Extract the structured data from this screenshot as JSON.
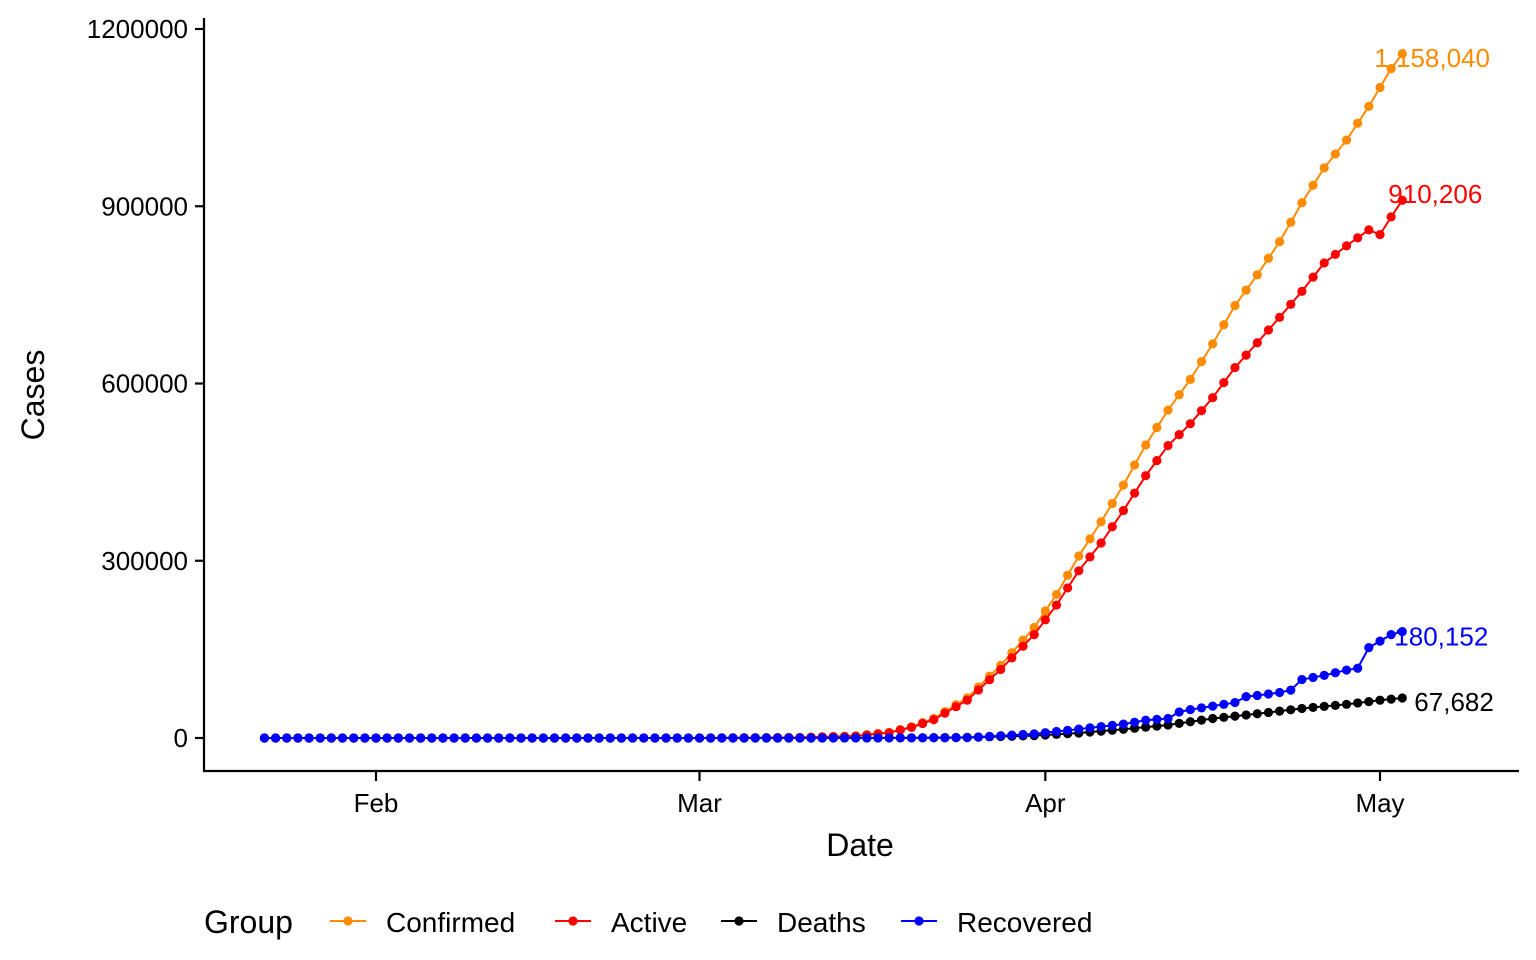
{
  "chart_data": {
    "type": "line",
    "title": "",
    "xlabel": "Date",
    "ylabel": "Cases",
    "x_axis": {
      "start_date": "2020-01-22",
      "end_date": "2020-05-03",
      "ticks": [
        {
          "date": "2020-02-01",
          "label": "Feb"
        },
        {
          "date": "2020-03-01",
          "label": "Mar"
        },
        {
          "date": "2020-04-01",
          "label": "Apr"
        },
        {
          "date": "2020-05-01",
          "label": "May"
        }
      ]
    },
    "y_axis": {
      "ylim": [
        -60000,
        1220000
      ],
      "ticks": [
        0,
        300000,
        600000,
        900000,
        1200000
      ],
      "tick_labels": [
        "0",
        "300000",
        "600000",
        "900000",
        "1200000"
      ]
    },
    "grid": false,
    "legend": {
      "title": "Group",
      "placement": "bottom",
      "entries": [
        "Confirmed",
        "Active",
        "Deaths",
        "Recovered"
      ]
    },
    "series": [
      {
        "name": "Confirmed",
        "color": "#FF8C00",
        "end_label": "1,158,040",
        "points": [
          [
            "2020-01-22",
            1
          ],
          [
            "2020-03-01",
            75
          ],
          [
            "2020-03-10",
            960
          ],
          [
            "2020-03-15",
            3500
          ],
          [
            "2020-03-18",
            9400
          ],
          [
            "2020-03-20",
            19000
          ],
          [
            "2020-03-22",
            33000
          ],
          [
            "2020-03-25",
            68000
          ],
          [
            "2020-03-28",
            123000
          ],
          [
            "2020-03-31",
            187000
          ],
          [
            "2020-04-02",
            243000
          ],
          [
            "2020-04-04",
            308000
          ],
          [
            "2020-04-06",
            366000
          ],
          [
            "2020-04-08",
            428000
          ],
          [
            "2020-04-10",
            496000
          ],
          [
            "2020-04-12",
            555000
          ],
          [
            "2020-04-14",
            607000
          ],
          [
            "2020-04-16",
            667000
          ],
          [
            "2020-04-18",
            732000
          ],
          [
            "2020-04-20",
            784000
          ],
          [
            "2020-04-22",
            840000
          ],
          [
            "2020-04-24",
            906000
          ],
          [
            "2020-04-26",
            965000
          ],
          [
            "2020-04-28",
            1012000
          ],
          [
            "2020-04-30",
            1069000
          ],
          [
            "2020-05-02",
            1133000
          ],
          [
            "2020-05-03",
            1158040
          ]
        ]
      },
      {
        "name": "Active",
        "color": "#FF0000",
        "end_label": "910,206",
        "points": [
          [
            "2020-01-22",
            1
          ],
          [
            "2020-03-01",
            70
          ],
          [
            "2020-03-10",
            900
          ],
          [
            "2020-03-15",
            3300
          ],
          [
            "2020-03-18",
            9000
          ],
          [
            "2020-03-20",
            18000
          ],
          [
            "2020-03-22",
            31000
          ],
          [
            "2020-03-25",
            64000
          ],
          [
            "2020-03-28",
            116000
          ],
          [
            "2020-03-31",
            175000
          ],
          [
            "2020-04-02",
            225000
          ],
          [
            "2020-04-04",
            283000
          ],
          [
            "2020-04-06",
            330000
          ],
          [
            "2020-04-08",
            385000
          ],
          [
            "2020-04-10",
            444000
          ],
          [
            "2020-04-12",
            495000
          ],
          [
            "2020-04-14",
            532000
          ],
          [
            "2020-04-16",
            576000
          ],
          [
            "2020-04-18",
            627000
          ],
          [
            "2020-04-20",
            669000
          ],
          [
            "2020-04-22",
            712000
          ],
          [
            "2020-04-24",
            756000
          ],
          [
            "2020-04-26",
            804000
          ],
          [
            "2020-04-28",
            833000
          ],
          [
            "2020-04-30",
            860000
          ],
          [
            "2020-05-01",
            852000
          ],
          [
            "2020-05-02",
            882000
          ],
          [
            "2020-05-03",
            910206
          ]
        ]
      },
      {
        "name": "Deaths",
        "color": "#000000",
        "end_label": "67,682",
        "points": [
          [
            "2020-01-22",
            0
          ],
          [
            "2020-03-10",
            30
          ],
          [
            "2020-03-20",
            300
          ],
          [
            "2020-03-25",
            1000
          ],
          [
            "2020-03-31",
            4000
          ],
          [
            "2020-04-04",
            8500
          ],
          [
            "2020-04-08",
            14800
          ],
          [
            "2020-04-12",
            22000
          ],
          [
            "2020-04-16",
            33000
          ],
          [
            "2020-04-20",
            41000
          ],
          [
            "2020-04-24",
            50000
          ],
          [
            "2020-04-28",
            57000
          ],
          [
            "2020-05-01",
            64000
          ],
          [
            "2020-05-03",
            67682
          ]
        ]
      },
      {
        "name": "Recovered",
        "color": "#0000FF",
        "end_label": "180,152",
        "points": [
          [
            "2020-01-22",
            0
          ],
          [
            "2020-03-10",
            10
          ],
          [
            "2020-03-20",
            150
          ],
          [
            "2020-03-25",
            700
          ],
          [
            "2020-03-31",
            7000
          ],
          [
            "2020-04-04",
            15000
          ],
          [
            "2020-04-08",
            23500
          ],
          [
            "2020-04-10",
            30000
          ],
          [
            "2020-04-12",
            33000
          ],
          [
            "2020-04-13",
            44000
          ],
          [
            "2020-04-14",
            48000
          ],
          [
            "2020-04-16",
            54000
          ],
          [
            "2020-04-18",
            60000
          ],
          [
            "2020-04-19",
            70000
          ],
          [
            "2020-04-20",
            72000
          ],
          [
            "2020-04-22",
            77000
          ],
          [
            "2020-04-23",
            81000
          ],
          [
            "2020-04-24",
            99000
          ],
          [
            "2020-04-26",
            106000
          ],
          [
            "2020-04-28",
            115000
          ],
          [
            "2020-04-29",
            118000
          ],
          [
            "2020-04-30",
            153000
          ],
          [
            "2020-05-01",
            164000
          ],
          [
            "2020-05-02",
            175000
          ],
          [
            "2020-05-03",
            180152
          ]
        ]
      }
    ]
  }
}
